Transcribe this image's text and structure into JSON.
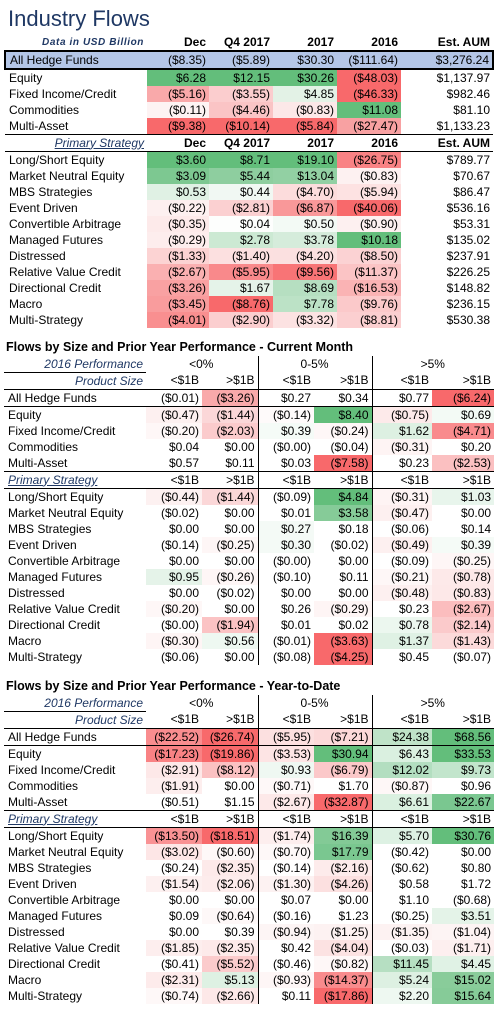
{
  "title": "Industry Flows",
  "top": {
    "header": [
      "Data in USD Billion",
      "Dec",
      "Q4 2017",
      "2017",
      "2016",
      "Est. AUM"
    ],
    "all": {
      "label": "All Hedge Funds",
      "cells": [
        "($8.35)",
        "($5.89)",
        "$30.30",
        "($111.64)",
        "$3,276.24"
      ],
      "colors": [
        "",
        "",
        "",
        "",
        ""
      ]
    },
    "asset": [
      {
        "label": "Equity",
        "cells": [
          "$6.28",
          "$12.15",
          "$30.26",
          "($48.03)",
          "$1,137.97"
        ],
        "colors": [
          "#63be7b",
          "#63be7b",
          "#63be7b",
          "#f8696b",
          ""
        ]
      },
      {
        "label": "Fixed Income/Credit",
        "cells": [
          "($5.16)",
          "($3.55)",
          "$4.85",
          "($46.33)",
          "$982.46"
        ],
        "colors": [
          "#f9a9aa",
          "#fbcdce",
          "#e3f2e6",
          "#f8696b",
          ""
        ]
      },
      {
        "label": "Commodities",
        "cells": [
          "($0.11)",
          "($4.46)",
          "($0.83)",
          "$11.08",
          "$81.10"
        ],
        "colors": [
          "#fdf3f3",
          "#fac4c5",
          "#fce8e8",
          "#63be7b",
          ""
        ]
      },
      {
        "label": "Multi-Asset",
        "cells": [
          "($9.38)",
          "($10.14)",
          "($5.84)",
          "($27.47)",
          "$1,133.23"
        ],
        "colors": [
          "#f8696b",
          "#f8696b",
          "#f8696b",
          "#f8a1a2",
          ""
        ]
      }
    ],
    "strategy_header": [
      "Primary Strategy",
      "Dec",
      "Q4 2017",
      "2017",
      "2016",
      "Est. AUM"
    ],
    "strategy": [
      {
        "label": "Long/Short Equity",
        "cells": [
          "$3.60",
          "$8.71",
          "$19.10",
          "($26.75)",
          "$789.77"
        ],
        "colors": [
          "#63be7b",
          "#63be7b",
          "#63be7b",
          "#f98284",
          ""
        ]
      },
      {
        "label": "Market Neutral Equity",
        "cells": [
          "$3.09",
          "$5.44",
          "$13.04",
          "($0.83)",
          "$70.67"
        ],
        "colors": [
          "#7dc891",
          "#8ece9f",
          "#92d0a3",
          "#fdf1f1",
          ""
        ]
      },
      {
        "label": "MBS Strategies",
        "cells": [
          "$0.53",
          "$0.44",
          "($4.70)",
          "($5.94)",
          "$86.47"
        ],
        "colors": [
          "#e0f1e4",
          "#f1f8f3",
          "#fcdcdc",
          "#fde2e2",
          ""
        ]
      },
      {
        "label": "Event Driven",
        "cells": [
          "($0.22)",
          "($2.81)",
          "($6.87)",
          "($40.06)",
          "$536.16"
        ],
        "colors": [
          "#fdf0f0",
          "#fbd0d1",
          "#f99899",
          "#f8696b",
          ""
        ]
      },
      {
        "label": "Convertible Arbitrage",
        "cells": [
          "($0.35)",
          "$0.04",
          "$0.50",
          "($0.90)",
          "$53.31"
        ],
        "colors": [
          "#fdeaea",
          "#fdfefd",
          "#f3faf5",
          "#fdf0f0",
          ""
        ]
      },
      {
        "label": "Managed Futures",
        "cells": [
          "($0.29)",
          "$2.78",
          "$3.78",
          "$10.18",
          "$135.02"
        ],
        "colors": [
          "#fdeded",
          "#cce9d3",
          "#d5ecdb",
          "#63be7b",
          ""
        ]
      },
      {
        "label": "Distressed",
        "cells": [
          "($1.33)",
          "($1.40)",
          "($4.20)",
          "($8.50)",
          "$237.91"
        ],
        "colors": [
          "#fcd3d3",
          "#fce0e0",
          "#fbe0e0",
          "#fbd2d3",
          ""
        ]
      },
      {
        "label": "Relative Value Credit",
        "cells": [
          "($2.67)",
          "($5.95)",
          "($9.56)",
          "($11.37)",
          "$226.25"
        ],
        "colors": [
          "#fab0b1",
          "#f9898b",
          "#f87476",
          "#fbc4c5",
          ""
        ]
      },
      {
        "label": "Directional Credit",
        "cells": [
          "($3.26)",
          "$1.67",
          "$8.69",
          "($16.53)",
          "$148.82"
        ],
        "colors": [
          "#f9a1a2",
          "#e5f3e9",
          "#b6dfc1",
          "#fab3b4",
          ""
        ]
      },
      {
        "label": "Macro",
        "cells": [
          "($3.45)",
          "($8.76)",
          "$7.78",
          "($9.76)",
          "$236.15"
        ],
        "colors": [
          "#f99c9d",
          "#f8696b",
          "#bce2c6",
          "#fbc9ca",
          ""
        ]
      },
      {
        "label": "Multi-Strategy",
        "cells": [
          "($4.01)",
          "($2.90)",
          "($3.32)",
          "($8.81)",
          "$530.38"
        ],
        "colors": [
          "#f98f90",
          "#fbcecf",
          "#fce2e2",
          "#fbcfd0",
          ""
        ]
      }
    ]
  },
  "month": {
    "title": "Flows by Size and Prior Year Performance - Current Month",
    "perf_label": "2016 Performance",
    "perf_groups": [
      "<0%",
      "0-5%",
      ">5%"
    ],
    "size_label": "Product Size",
    "sizes": [
      "<$1B",
      ">$1B",
      "<$1B",
      ">$1B",
      "<$1B",
      ">$1B"
    ],
    "all": {
      "label": "All Hedge Funds",
      "cells": [
        "($0.01)",
        "($3.26)",
        "$0.27",
        "$0.34",
        "$0.77",
        "($6.24)"
      ],
      "colors": [
        "",
        "#f9a9aa",
        "",
        "",
        "",
        "#f8696b"
      ]
    },
    "asset": [
      {
        "label": "Equity",
        "cells": [
          "($0.47)",
          "($1.44)",
          "($0.14)",
          "$8.40",
          "($0.75)",
          "$0.69"
        ],
        "colors": [
          "#fdf0f0",
          "#fbd7d8",
          "#fefafa",
          "#63be7b",
          "#fdeaea",
          "#f3faf5"
        ]
      },
      {
        "label": "Fixed Income/Credit",
        "cells": [
          "($0.20)",
          "($2.03)",
          "$0.39",
          "($0.24)",
          "$1.62",
          "($4.71)"
        ],
        "colors": [
          "#fef7f7",
          "#fbcbcc",
          "#f5fbf7",
          "#fef7f7",
          "#ddf0e2",
          "#f98b8d"
        ]
      },
      {
        "label": "Commodities",
        "cells": [
          "$0.04",
          "$0.00",
          "($0.00)",
          "($0.04)",
          "($0.31)",
          "$0.20"
        ],
        "colors": [
          "",
          "",
          "",
          "",
          "#fef4f4",
          ""
        ]
      },
      {
        "label": "Multi-Asset",
        "cells": [
          "$0.57",
          "$0.11",
          "$0.03",
          "($7.58)",
          "$0.23",
          "($2.53)"
        ],
        "colors": [
          "",
          "",
          "",
          "#f8696b",
          "",
          "#fbc0c1"
        ]
      }
    ],
    "strategy_label": "Primary Strategy",
    "strategy": [
      {
        "label": "Long/Short Equity",
        "cells": [
          "($0.44)",
          "($1.44)",
          "($0.09)",
          "$4.84",
          "($0.31)",
          "$1.03"
        ],
        "colors": [
          "#fdf1f1",
          "#fbd7d8",
          "",
          "#63be7b",
          "#fef4f4",
          "#e8f5ec"
        ]
      },
      {
        "label": "Market Neutral Equity",
        "cells": [
          "($0.02)",
          "$0.00",
          "$0.01",
          "$3.58",
          "($0.47)",
          "$0.00"
        ],
        "colors": [
          "",
          "",
          "",
          "#86cb98",
          "#fdf0f0",
          ""
        ]
      },
      {
        "label": "MBS Strategies",
        "cells": [
          "$0.00",
          "$0.00",
          "$0.27",
          "$0.18",
          "($0.06)",
          "$0.14"
        ],
        "colors": [
          "",
          "",
          "#f4faf6",
          "",
          "",
          ""
        ]
      },
      {
        "label": "Event Driven",
        "cells": [
          "($0.14)",
          "($0.25)",
          "$0.30",
          "($0.02)",
          "($0.49)",
          "$0.39"
        ],
        "colors": [
          "",
          "#fef6f6",
          "#f4faf6",
          "",
          "#fdf0f0",
          "#f5fbf7"
        ]
      },
      {
        "label": "Convertible Arbitrage",
        "cells": [
          "$0.00",
          "$0.00",
          "($0.00)",
          "$0.00",
          "($0.09)",
          "($0.25)"
        ],
        "colors": [
          "",
          "",
          "",
          "",
          "",
          "#fef6f6"
        ]
      },
      {
        "label": "Managed Futures",
        "cells": [
          "$0.95",
          "($0.26)",
          "($0.10)",
          "$0.11",
          "($0.21)",
          "($0.78)"
        ],
        "colors": [
          "#e5f3e9",
          "#fef6f6",
          "",
          "",
          "#fef7f7",
          "#fde9e9"
        ]
      },
      {
        "label": "Distressed",
        "cells": [
          "$0.00",
          "($0.02)",
          "$0.00",
          "$0.00",
          "($0.48)",
          "($0.83)"
        ],
        "colors": [
          "",
          "",
          "",
          "",
          "#fdf0f0",
          "#fde8e8"
        ]
      },
      {
        "label": "Relative Value Credit",
        "cells": [
          "($0.20)",
          "$0.00",
          "$0.26",
          "($0.29)",
          "$0.23",
          "($2.67)"
        ],
        "colors": [
          "#fef7f7",
          "",
          "",
          "#fef5f5",
          "",
          "#fbbdbe"
        ]
      },
      {
        "label": "Directional Credit",
        "cells": [
          "($0.00)",
          "($1.94)",
          "$0.01",
          "$0.02",
          "$0.78",
          "($2.14)"
        ],
        "colors": [
          "",
          "#fbc3c4",
          "",
          "",
          "#ecf7ef",
          "#fbcacb"
        ]
      },
      {
        "label": "Macro",
        "cells": [
          "($0.30)",
          "$0.56",
          "($0.01)",
          "($3.63)",
          "$1.37",
          "($1.43)"
        ],
        "colors": [
          "#fef5f5",
          "#eef8f1",
          "",
          "#f8696b",
          "#dff1e4",
          "#fcdada"
        ]
      },
      {
        "label": "Multi-Strategy",
        "cells": [
          "($0.06)",
          "$0.00",
          "($0.08)",
          "($4.25)",
          "$0.45",
          "($0.07)"
        ],
        "colors": [
          "",
          "",
          "",
          "#f8696b",
          "",
          ""
        ]
      }
    ]
  },
  "ytd": {
    "title": "Flows by Size and Prior Year Performance - Year-to-Date",
    "perf_label": "2016 Performance",
    "perf_groups": [
      "<0%",
      "0-5%",
      ">5%"
    ],
    "size_label": "Product Size",
    "sizes": [
      "<$1B",
      ">$1B",
      "<$1B",
      ">$1B",
      "<$1B",
      ">$1B"
    ],
    "all": {
      "label": "All Hedge Funds",
      "cells": [
        "($22.52)",
        "($26.74)",
        "($5.95)",
        "($7.21)",
        "$24.38",
        "$68.56"
      ],
      "colors": [
        "#f98d8f",
        "#f8696b",
        "#fce0e0",
        "#fcd9d9",
        "#bfe3c8",
        "#63be7b"
      ]
    },
    "asset": [
      {
        "label": "Equity",
        "cells": [
          "($17.23)",
          "($19.86)",
          "($3.53)",
          "$30.94",
          "$6.43",
          "$33.53"
        ],
        "colors": [
          "#f98284",
          "#f8696b",
          "#fde4e4",
          "#63be7b",
          "#daf0e0",
          "#63be7b"
        ]
      },
      {
        "label": "Fixed Income/Credit",
        "cells": [
          "($2.91)",
          "($8.12)",
          "$0.93",
          "($6.79)",
          "$12.02",
          "$9.73"
        ],
        "colors": [
          "#fde8e8",
          "#fbc1c2",
          "#eff8f2",
          "#fbc8c9",
          "#b3dec0",
          "#c2e5cc"
        ]
      },
      {
        "label": "Commodities",
        "cells": [
          "($1.91)",
          "$0.00",
          "($0.71)",
          "$1.70",
          "($0.87)",
          "$0.96"
        ],
        "colors": [
          "#fdeeee",
          "",
          "#fef8f8",
          "",
          "#fef7f7",
          ""
        ]
      },
      {
        "label": "Multi-Asset",
        "cells": [
          "($0.51)",
          "$1.15",
          "($2.67)",
          "($32.87)",
          "$6.61",
          "$22.67"
        ],
        "colors": [
          "",
          "",
          "#fde9e9",
          "#f8696b",
          "#daf0e0",
          "#7ac790"
        ]
      }
    ],
    "strategy_label": "Primary Strategy",
    "strategy": [
      {
        "label": "Long/Short Equity",
        "cells": [
          "($13.50)",
          "($18.51)",
          "($1.74)",
          "$16.39",
          "$5.70",
          "$30.76"
        ],
        "colors": [
          "#f99294",
          "#f8696b",
          "#fdeeee",
          "#83ca96",
          "#ddf1e3",
          "#63be7b"
        ]
      },
      {
        "label": "Market Neutral Equity",
        "cells": [
          "($3.02)",
          "($0.60)",
          "($0.70)",
          "$17.79",
          "($0.42)",
          "$0.00"
        ],
        "colors": [
          "#fde6e6",
          "#fef8f8",
          "#fef8f8",
          "#7ac790",
          "",
          ""
        ]
      },
      {
        "label": "MBS Strategies",
        "cells": [
          "($0.24)",
          "($2.35)",
          "($0.14)",
          "($2.16)",
          "($0.62)",
          "$0.80"
        ],
        "colors": [
          "",
          "#fdeaea",
          "",
          "#fdebeb",
          "",
          ""
        ]
      },
      {
        "label": "Event Driven",
        "cells": [
          "($1.54)",
          "($2.06)",
          "($1.30)",
          "($4.26)",
          "$0.58",
          "$1.72"
        ],
        "colors": [
          "#fdf0f0",
          "#fdecec",
          "#fdf2f2",
          "#fce0e0",
          "",
          ""
        ]
      },
      {
        "label": "Convertible Arbitrage",
        "cells": [
          "$0.00",
          "$0.00",
          "$0.07",
          "$0.00",
          "$1.10",
          "($0.68)"
        ],
        "colors": [
          "",
          "",
          "",
          "",
          "",
          ""
        ]
      },
      {
        "label": "Managed Futures",
        "cells": [
          "$0.09",
          "($0.64)",
          "($0.16)",
          "$1.23",
          "($0.25)",
          "$3.51"
        ],
        "colors": [
          "",
          "#fef8f8",
          "",
          "",
          "",
          "#e4f3e8"
        ]
      },
      {
        "label": "Distressed",
        "cells": [
          "$0.00",
          "$0.39",
          "($0.94)",
          "($1.25)",
          "($1.35)",
          "($1.04)"
        ],
        "colors": [
          "",
          "",
          "#fdf5f5",
          "#fdf2f2",
          "#fdf2f2",
          "#fdf4f4"
        ]
      },
      {
        "label": "Relative Value Credit",
        "cells": [
          "($1.85)",
          "($2.35)",
          "$0.42",
          "($4.04)",
          "($0.03)",
          "($1.71)"
        ],
        "colors": [
          "#fdeeee",
          "#fdeaea",
          "",
          "#fce2e2",
          "",
          "#fdefef"
        ]
      },
      {
        "label": "Directional Credit",
        "cells": [
          "($0.41)",
          "($5.52)",
          "($0.46)",
          "($0.82)",
          "$11.45",
          "$4.45"
        ],
        "colors": [
          "",
          "#fbcbcc",
          "",
          "#fef7f7",
          "#b6dfc2",
          "#e0f2e5"
        ]
      },
      {
        "label": "Macro",
        "cells": [
          "($2.31)",
          "$5.13",
          "($0.93)",
          "($14.37)",
          "$5.24",
          "$15.02"
        ],
        "colors": [
          "#fdebeb",
          "#def1e3",
          "#fef6f6",
          "#f98b8d",
          "#ddf0e2",
          "#89cc9a"
        ]
      },
      {
        "label": "Multi-Strategy",
        "cells": [
          "($0.74)",
          "($2.66)",
          "$0.11",
          "($17.86)",
          "$2.20",
          "$15.64"
        ],
        "colors": [
          "#fef8f8",
          "#fde8e8",
          "",
          "#f8696b",
          "#eef8f1",
          "#86cb98"
        ]
      }
    ]
  }
}
